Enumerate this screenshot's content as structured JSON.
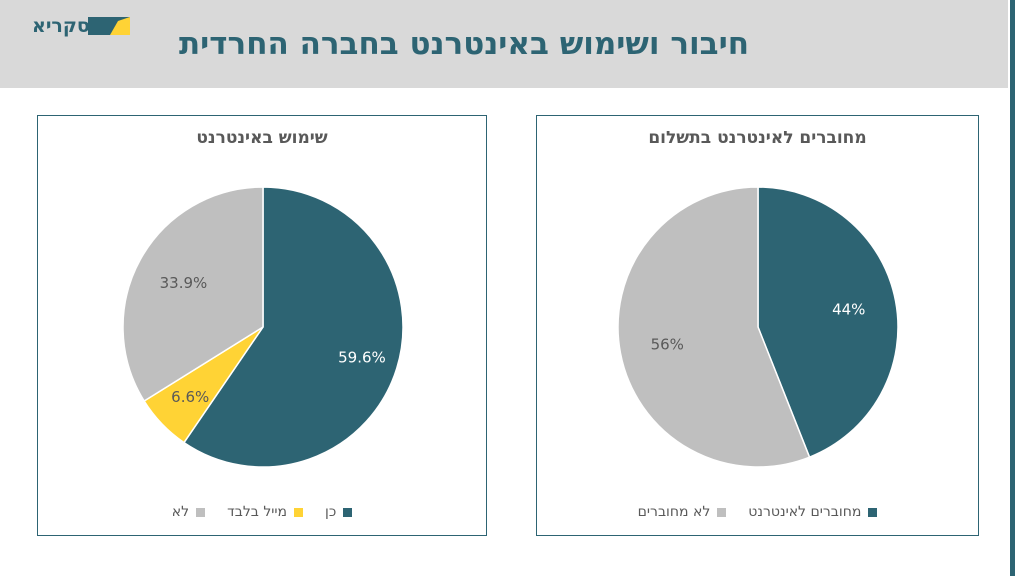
{
  "logo": {
    "text": "אסקריא",
    "color": "#2d6473"
  },
  "page": {
    "title": "חיבור ושימוש באינטרנט בחברה החרדית"
  },
  "colors": {
    "teal": "#2d6473",
    "yellow": "#ffd335",
    "gray": "#bfbfbf"
  },
  "chart_data": [
    {
      "type": "pie",
      "title": "שימוש באינטרנט",
      "categories": [
        "כן",
        "מייל בלבד",
        "לא"
      ],
      "values": [
        59.6,
        6.6,
        33.9
      ],
      "labels": [
        "59.6%",
        "6.6%",
        "33.9%"
      ],
      "colors": [
        "#2d6473",
        "#ffd335",
        "#bfbfbf"
      ],
      "legend": "bottom"
    },
    {
      "type": "pie",
      "title": "מחוברים לאינטרנט בתשלום",
      "categories": [
        "מחוברים לאינטרנט",
        "לא מחוברים"
      ],
      "values": [
        44,
        56
      ],
      "labels": [
        "44%",
        "56%"
      ],
      "colors": [
        "#2d6473",
        "#bfbfbf"
      ],
      "legend": "bottom"
    }
  ]
}
